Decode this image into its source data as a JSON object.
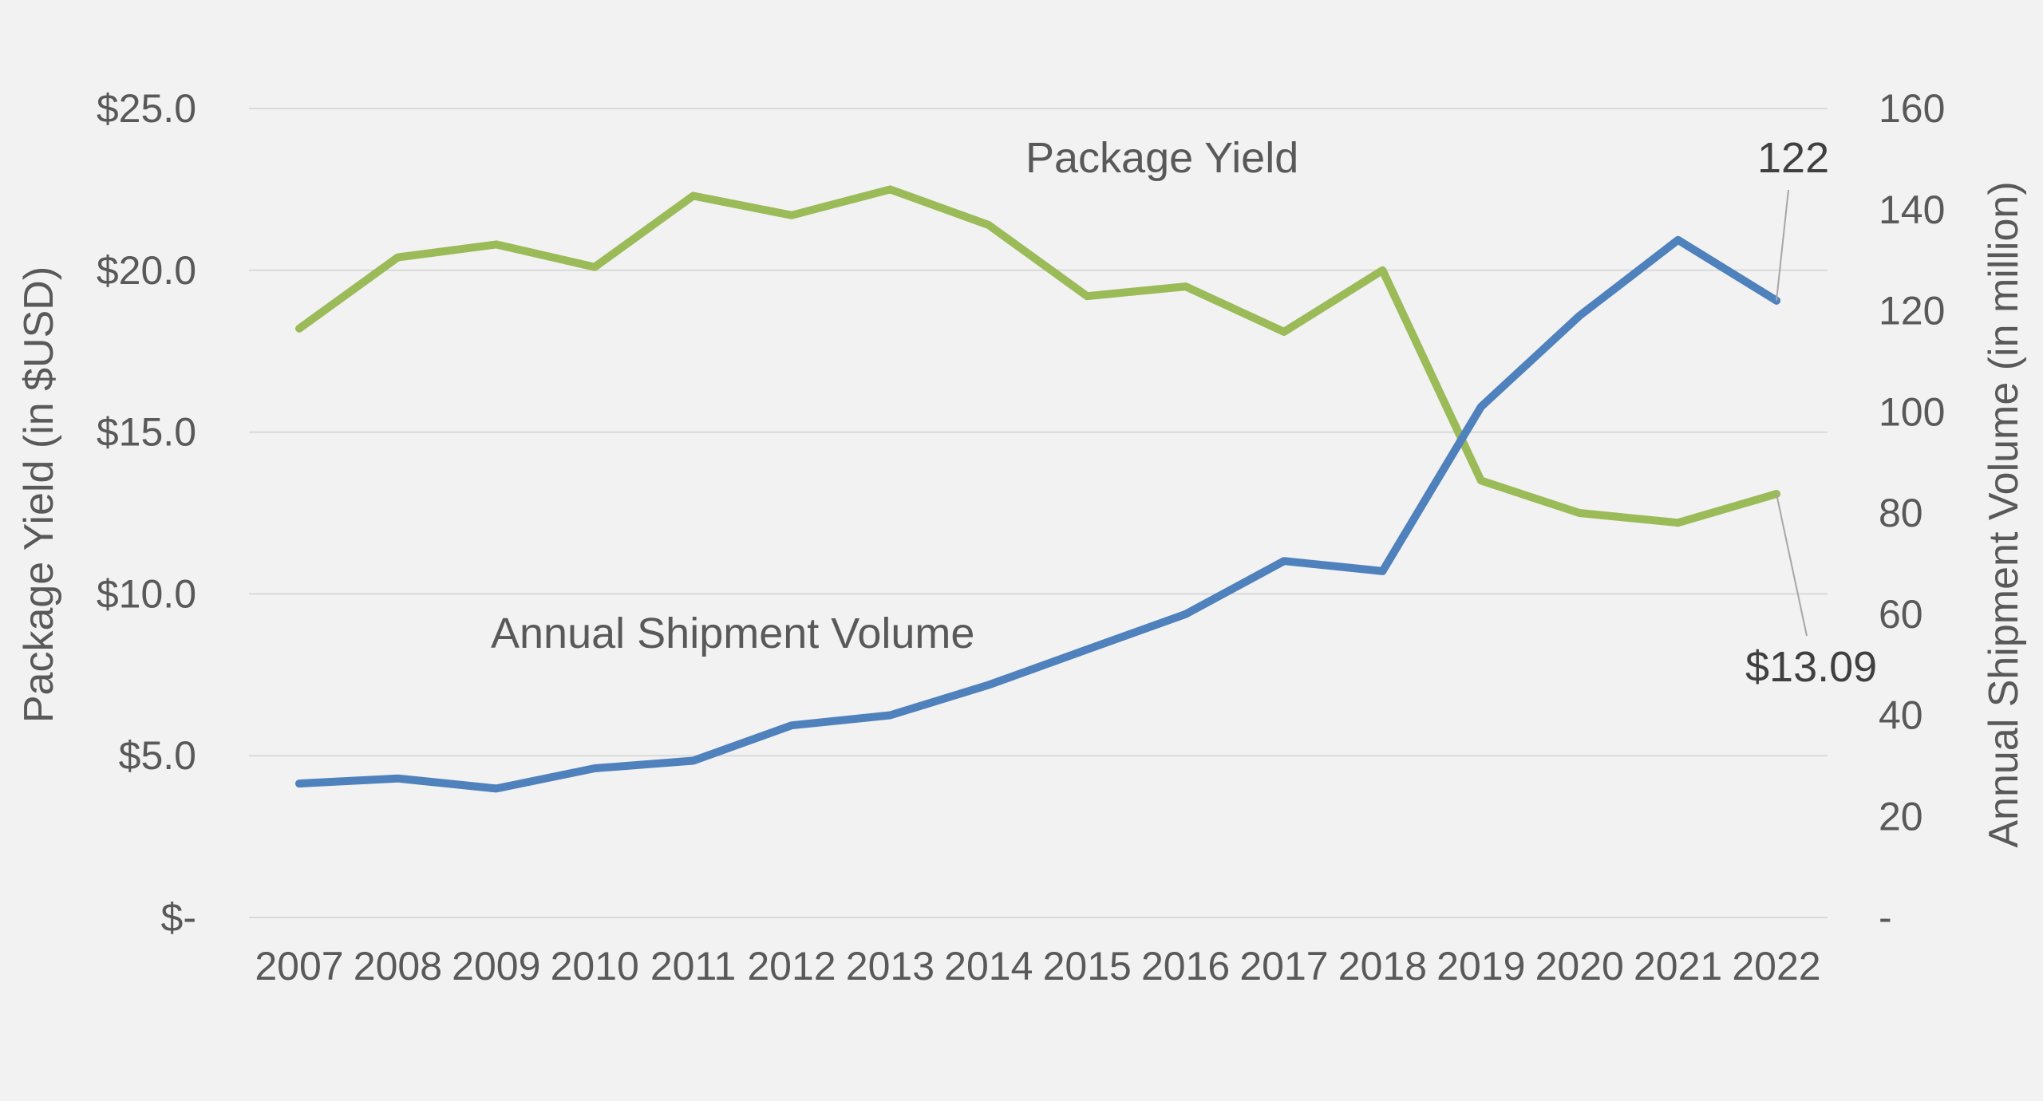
{
  "chart_data": {
    "type": "line",
    "categories": [
      "2007",
      "2008",
      "2009",
      "2010",
      "2011",
      "2012",
      "2013",
      "2014",
      "2015",
      "2016",
      "2017",
      "2018",
      "2019",
      "2020",
      "2021",
      "2022"
    ],
    "series": [
      {
        "name": "Package Yield",
        "axis": "left",
        "color": "#9bbb59",
        "values": [
          18.2,
          20.4,
          20.8,
          20.1,
          22.3,
          21.7,
          22.5,
          21.4,
          19.2,
          19.5,
          18.1,
          20.0,
          13.5,
          12.5,
          12.2,
          13.09
        ]
      },
      {
        "name": "Annual Shipment Volume",
        "axis": "right",
        "color": "#4f81bd",
        "values": [
          26.5,
          27.5,
          25.5,
          29.5,
          31.0,
          38.0,
          40.0,
          46.0,
          53.0,
          60.0,
          70.5,
          68.5,
          101.0,
          119.0,
          134.0,
          122.0
        ]
      }
    ],
    "ylabel_left": "Package Yield (in $USD)",
    "ylabel_right": "Annual Shipment Volume (in million)",
    "ylim_left": [
      0,
      25
    ],
    "ylim_right": [
      0,
      160
    ],
    "yticks_left": [
      "$-",
      "$5.0",
      "$10.0",
      "$15.0",
      "$20.0",
      "$25.0"
    ],
    "yticks_right": [
      "-",
      "20",
      "40",
      "60",
      "80",
      "100",
      "120",
      "140",
      "160"
    ],
    "annotations": {
      "yield_last": "$13.09",
      "volume_last": "122"
    },
    "grid": true,
    "legend": "none"
  }
}
